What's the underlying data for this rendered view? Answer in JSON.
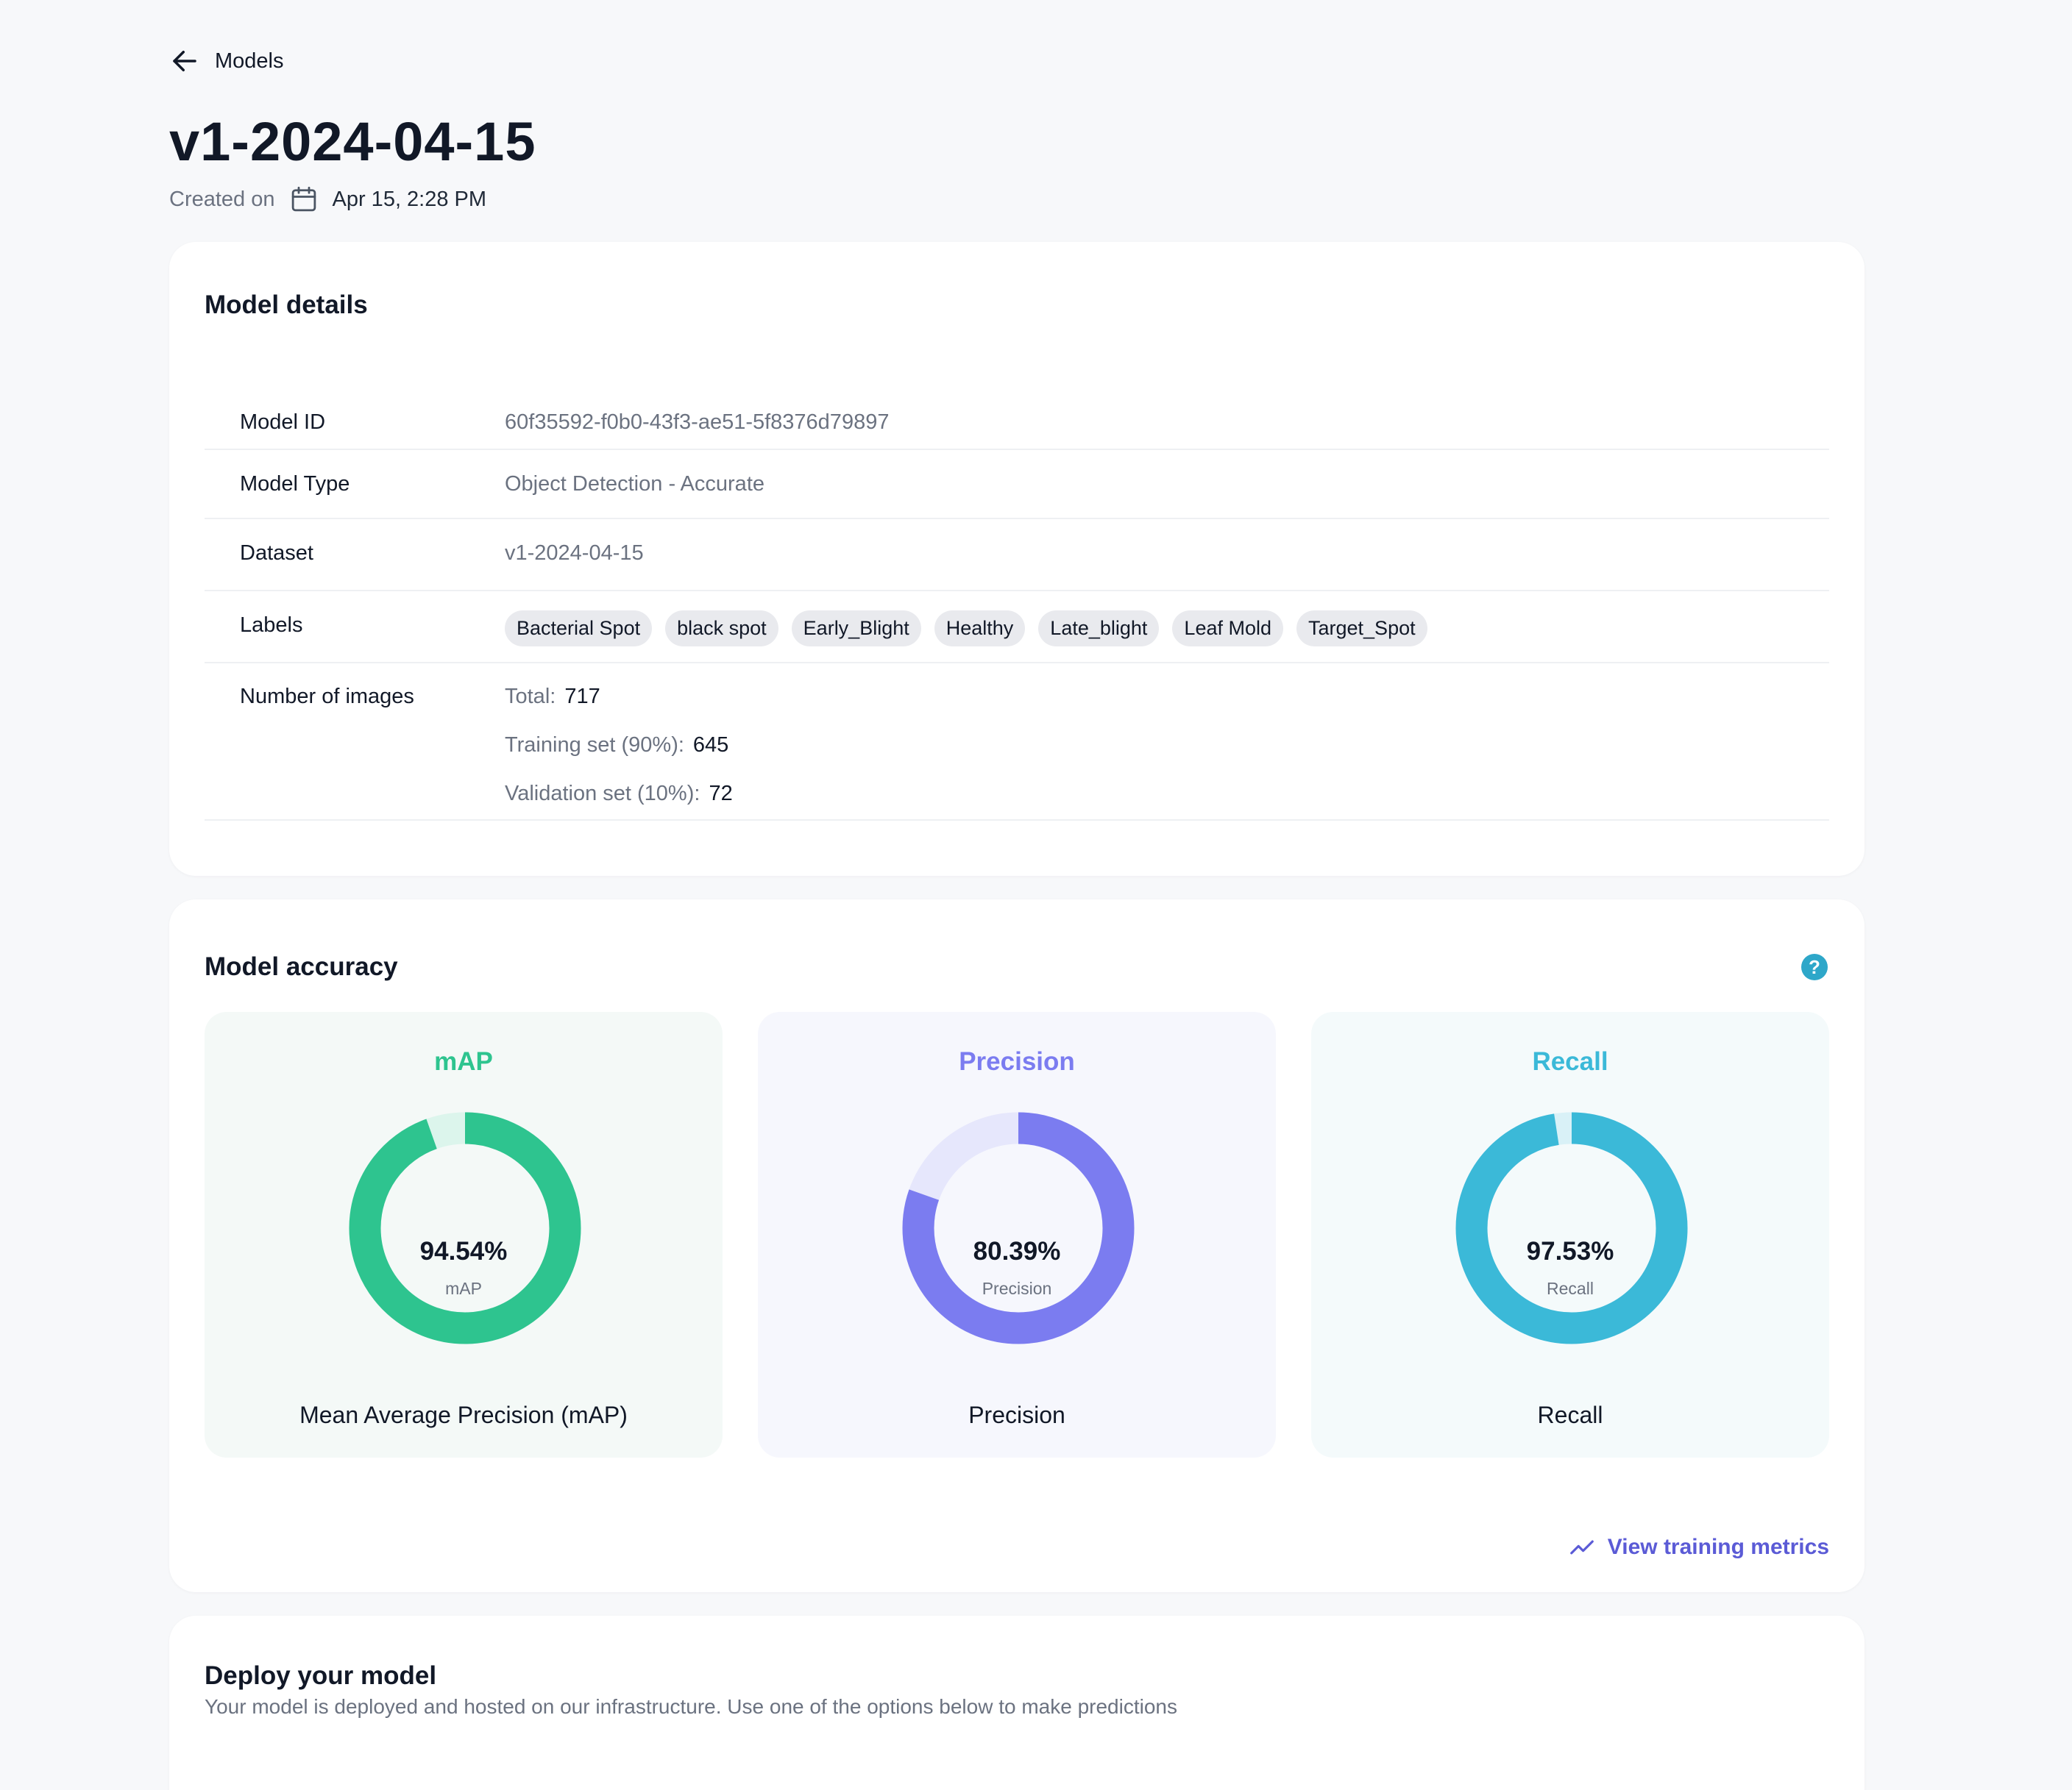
{
  "header": {
    "back_label": "Models",
    "title": "v1-2024-04-15",
    "created_prefix": "Created on",
    "created_date": "Apr 15, 2:28 PM"
  },
  "model_details": {
    "title": "Model details",
    "rows": {
      "model_id": {
        "label": "Model ID",
        "value": "60f35592-f0b0-43f3-ae51-5f8376d79897"
      },
      "model_type": {
        "label": "Model Type",
        "value": "Object Detection - Accurate"
      },
      "dataset": {
        "label": "Dataset",
        "value": "v1-2024-04-15"
      },
      "labels": {
        "label": "Labels",
        "values": [
          "Bacterial Spot",
          "black spot",
          "Early_Blight",
          "Healthy",
          "Late_blight",
          "Leaf Mold",
          "Target_Spot"
        ]
      },
      "images": {
        "label": "Number of images",
        "total_label": "Total:",
        "total": "717",
        "training_label": "Training set (90%):",
        "training": "645",
        "validation_label": "Validation set (10%):",
        "validation": "72"
      }
    }
  },
  "model_accuracy": {
    "title": "Model accuracy",
    "help_symbol": "?",
    "metrics": [
      {
        "name": "mAP",
        "value_text": "94.54%",
        "value": 94.54,
        "sub": "mAP",
        "description": "Mean Average Precision (mAP)",
        "color": "#2ec48f",
        "track": "#dcf5ec",
        "bg": "#f4f9f7"
      },
      {
        "name": "Precision",
        "value_text": "80.39%",
        "value": 80.39,
        "sub": "Precision",
        "description": "Precision",
        "color": "#7b7cf0",
        "track": "#e6e7fc",
        "bg": "#f6f7fd"
      },
      {
        "name": "Recall",
        "value_text": "97.53%",
        "value": 97.53,
        "sub": "Recall",
        "description": "Recall",
        "color": "#3bb9d8",
        "track": "#d9f1f7",
        "bg": "#f4fafb"
      }
    ],
    "view_metrics_label": "View training metrics",
    "link_color": "#5b5bd6"
  },
  "deploy": {
    "title": "Deploy your model",
    "subtitle": "Your model is deployed and hosted on our infrastructure. Use one of the options below to make predictions"
  }
}
